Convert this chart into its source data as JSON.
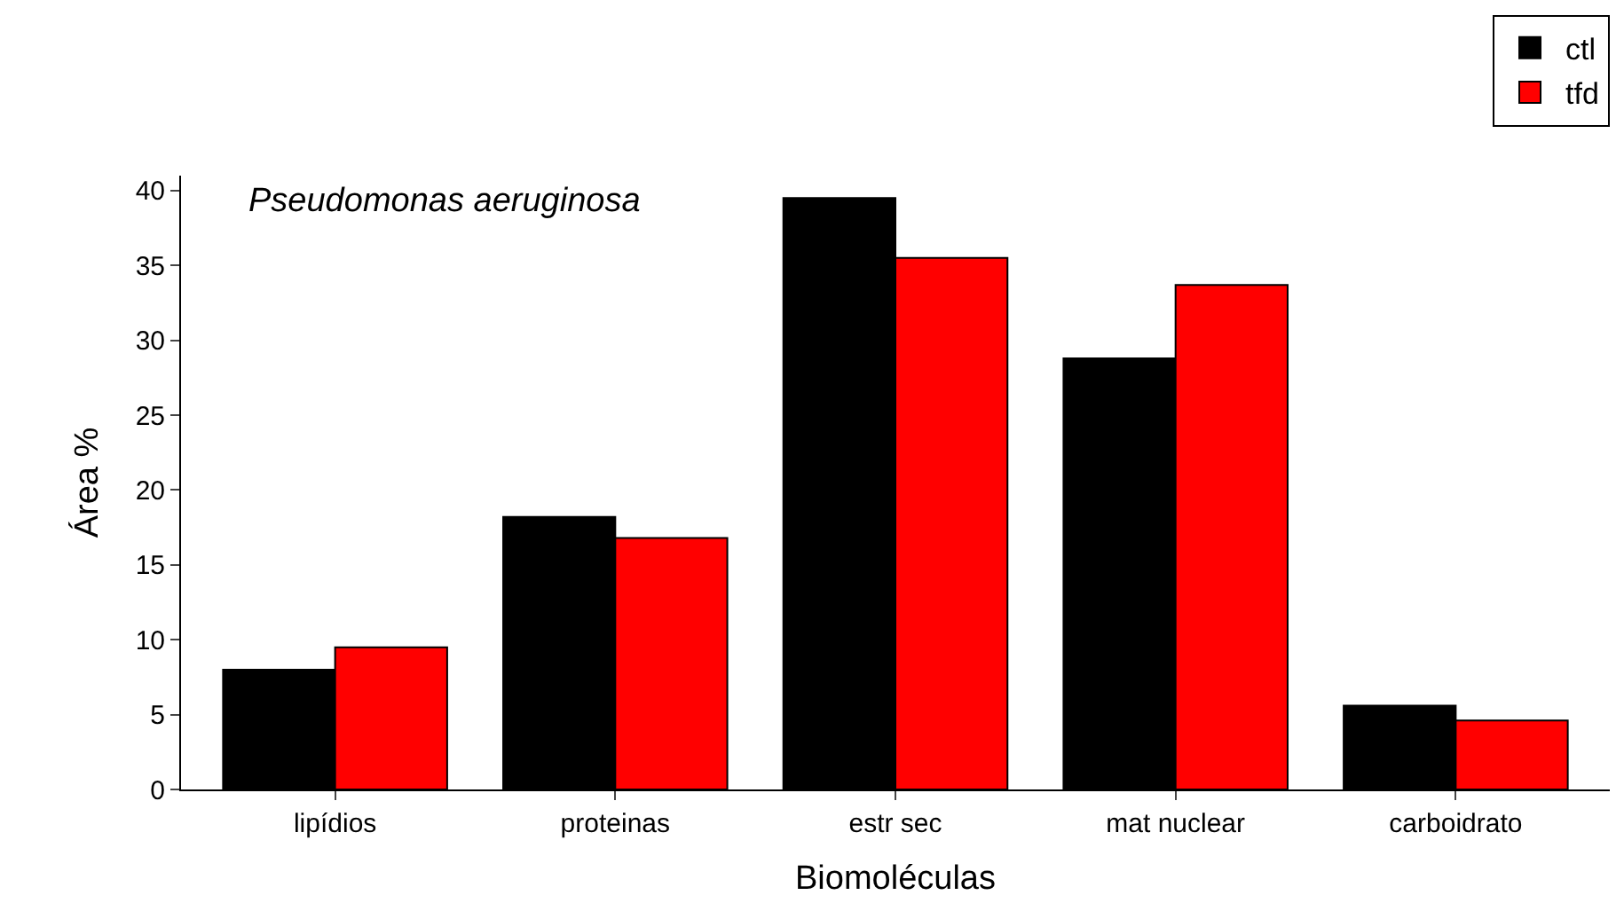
{
  "chart_data": {
    "type": "bar",
    "title": "Pseudomonas aeruginosa",
    "xlabel": "Biomoléculas",
    "ylabel": "Área %",
    "categories": [
      "lipídios",
      "proteinas",
      "estr sec",
      "mat nuclear",
      "carboidrato"
    ],
    "series": [
      {
        "name": "ctl",
        "color": "#000000",
        "values": [
          8.0,
          18.2,
          39.5,
          28.8,
          5.6
        ]
      },
      {
        "name": "tfd",
        "color": "#ff0000",
        "values": [
          9.5,
          16.8,
          35.5,
          33.7,
          4.6
        ]
      }
    ],
    "ylim": [
      0,
      41
    ],
    "yticks": [
      0,
      5,
      10,
      15,
      20,
      25,
      30,
      35,
      40
    ],
    "legend": "top right"
  }
}
